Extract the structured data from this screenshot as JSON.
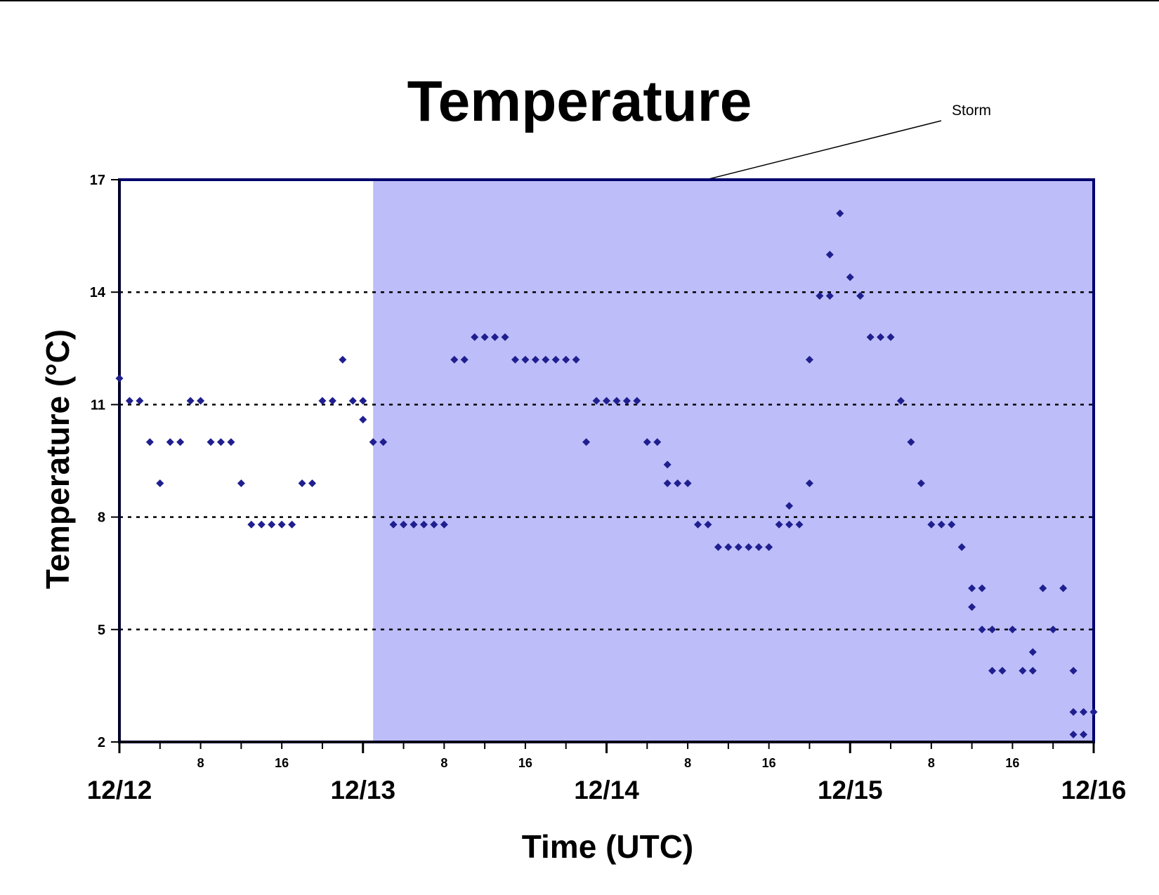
{
  "chart_data": {
    "type": "scatter",
    "title": "Temperature",
    "xlabel": "Time (UTC)",
    "ylabel": "Temperature (°C)",
    "x_unit": "hours from 12/12 00 UTC",
    "xlim": [
      0,
      96
    ],
    "ylim": [
      2,
      17
    ],
    "y_ticks": [
      2,
      5,
      8,
      11,
      14,
      17
    ],
    "gridlines_y": [
      5,
      8,
      11,
      14
    ],
    "hour_ticks": [
      {
        "x": 8,
        "label": "8"
      },
      {
        "x": 16,
        "label": "16"
      },
      {
        "x": 32,
        "label": "8"
      },
      {
        "x": 40,
        "label": "16"
      },
      {
        "x": 56,
        "label": "8"
      },
      {
        "x": 64,
        "label": "16"
      },
      {
        "x": 80,
        "label": "8"
      },
      {
        "x": 88,
        "label": "16"
      }
    ],
    "day_ticks": [
      {
        "x": 0,
        "label": "12/12"
      },
      {
        "x": 24,
        "label": "12/13"
      },
      {
        "x": 48,
        "label": "12/14"
      },
      {
        "x": 72,
        "label": "12/15"
      },
      {
        "x": 96,
        "label": "12/16"
      }
    ],
    "shaded_region": {
      "x_start": 25,
      "x_end": 96,
      "label": "Storm",
      "color": "#bdbdfa"
    },
    "marker_color": "#1f1f8f",
    "grid": true,
    "legend": "none",
    "points": [
      [
        0,
        11.7
      ],
      [
        1,
        11.1
      ],
      [
        2,
        11.1
      ],
      [
        3,
        10.0
      ],
      [
        4,
        8.9
      ],
      [
        5,
        10.0
      ],
      [
        6,
        10.0
      ],
      [
        7,
        11.1
      ],
      [
        8,
        11.1
      ],
      [
        9,
        10.0
      ],
      [
        10,
        10.0
      ],
      [
        11,
        10.0
      ],
      [
        12,
        8.9
      ],
      [
        13,
        7.8
      ],
      [
        14,
        7.8
      ],
      [
        15,
        7.8
      ],
      [
        16,
        7.8
      ],
      [
        17,
        7.8
      ],
      [
        18,
        8.9
      ],
      [
        19,
        8.9
      ],
      [
        20,
        11.1
      ],
      [
        21,
        11.1
      ],
      [
        22,
        12.2
      ],
      [
        23,
        11.1
      ],
      [
        24,
        11.1
      ],
      [
        24,
        10.6
      ],
      [
        25,
        10.0
      ],
      [
        26,
        10.0
      ],
      [
        27,
        7.8
      ],
      [
        28,
        7.8
      ],
      [
        29,
        7.8
      ],
      [
        30,
        7.8
      ],
      [
        31,
        7.8
      ],
      [
        32,
        7.8
      ],
      [
        33,
        12.2
      ],
      [
        34,
        12.2
      ],
      [
        35,
        12.8
      ],
      [
        36,
        12.8
      ],
      [
        37,
        12.8
      ],
      [
        38,
        12.8
      ],
      [
        39,
        12.2
      ],
      [
        40,
        12.2
      ],
      [
        41,
        12.2
      ],
      [
        42,
        12.2
      ],
      [
        43,
        12.2
      ],
      [
        44,
        12.2
      ],
      [
        45,
        12.2
      ],
      [
        46,
        10.0
      ],
      [
        47,
        11.1
      ],
      [
        48,
        11.1
      ],
      [
        49,
        11.1
      ],
      [
        50,
        11.1
      ],
      [
        51,
        11.1
      ],
      [
        52,
        10.0
      ],
      [
        53,
        10.0
      ],
      [
        54,
        9.4
      ],
      [
        54,
        8.9
      ],
      [
        55,
        8.9
      ],
      [
        56,
        8.9
      ],
      [
        57,
        7.8
      ],
      [
        58,
        7.8
      ],
      [
        59,
        7.2
      ],
      [
        60,
        7.2
      ],
      [
        61,
        7.2
      ],
      [
        62,
        7.2
      ],
      [
        63,
        7.2
      ],
      [
        64,
        7.2
      ],
      [
        65,
        7.8
      ],
      [
        66,
        7.8
      ],
      [
        66,
        8.3
      ],
      [
        67,
        7.8
      ],
      [
        68,
        8.9
      ],
      [
        68,
        12.2
      ],
      [
        69,
        13.9
      ],
      [
        70,
        13.9
      ],
      [
        70,
        15.0
      ],
      [
        71,
        16.1
      ],
      [
        72,
        14.4
      ],
      [
        73,
        13.9
      ],
      [
        74,
        12.8
      ],
      [
        75,
        12.8
      ],
      [
        76,
        12.8
      ],
      [
        77,
        11.1
      ],
      [
        78,
        10.0
      ],
      [
        79,
        8.9
      ],
      [
        80,
        7.8
      ],
      [
        81,
        7.8
      ],
      [
        82,
        7.8
      ],
      [
        83,
        7.2
      ],
      [
        84,
        6.1
      ],
      [
        84,
        5.6
      ],
      [
        85,
        6.1
      ],
      [
        85,
        5.0
      ],
      [
        86,
        5.0
      ],
      [
        86,
        3.9
      ],
      [
        87,
        3.9
      ],
      [
        88,
        5.0
      ],
      [
        89,
        3.9
      ],
      [
        90,
        3.9
      ],
      [
        90,
        4.4
      ],
      [
        91,
        6.1
      ],
      [
        92,
        5.0
      ],
      [
        93,
        6.1
      ],
      [
        94,
        3.9
      ],
      [
        94,
        2.8
      ],
      [
        94,
        2.2
      ],
      [
        95,
        2.2
      ],
      [
        95,
        2.8
      ],
      [
        96,
        2.8
      ]
    ]
  }
}
